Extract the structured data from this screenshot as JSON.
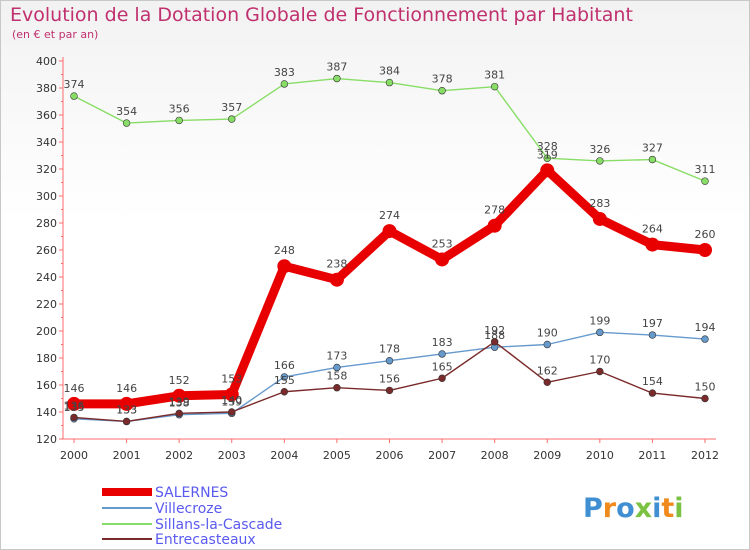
{
  "title": "Evolution de la Dotation Globale de Fonctionnement par Habitant",
  "subtitle": "(en € et par an)",
  "brand": "Proxiti",
  "chart_data": {
    "type": "line",
    "title": "Evolution de la Dotation Globale de Fonctionnement par Habitant",
    "ylabel": "(en € et par an)",
    "xlabel": "",
    "ylim": [
      120,
      400
    ],
    "ytick_step": 20,
    "grid": false,
    "legend_position": "bottom-left",
    "x": [
      "2000",
      "2001",
      "2002",
      "2003",
      "2004",
      "2005",
      "2006",
      "2007",
      "2008",
      "2009",
      "2010",
      "2011",
      "2012"
    ],
    "series": [
      {
        "name": "SALERNES",
        "color": "#e80000",
        "width": "thick",
        "values": [
          146,
          146,
          152,
          153,
          248,
          238,
          274,
          253,
          278,
          319,
          283,
          264,
          260
        ]
      },
      {
        "name": "Villecroze",
        "color": "#6699cc",
        "width": "thin",
        "values": [
          135,
          133,
          138,
          139,
          166,
          173,
          178,
          183,
          188,
          190,
          199,
          197,
          194
        ]
      },
      {
        "name": "Sillans-la-Cascade",
        "color": "#88dd66",
        "width": "thin",
        "values": [
          374,
          354,
          356,
          357,
          383,
          387,
          384,
          378,
          381,
          328,
          326,
          327,
          311
        ]
      },
      {
        "name": "Entrecasteaux",
        "color": "#7a2a2a",
        "width": "thin",
        "values": [
          136,
          133,
          139,
          140,
          155,
          158,
          156,
          165,
          192,
          162,
          170,
          154,
          150
        ]
      }
    ]
  }
}
